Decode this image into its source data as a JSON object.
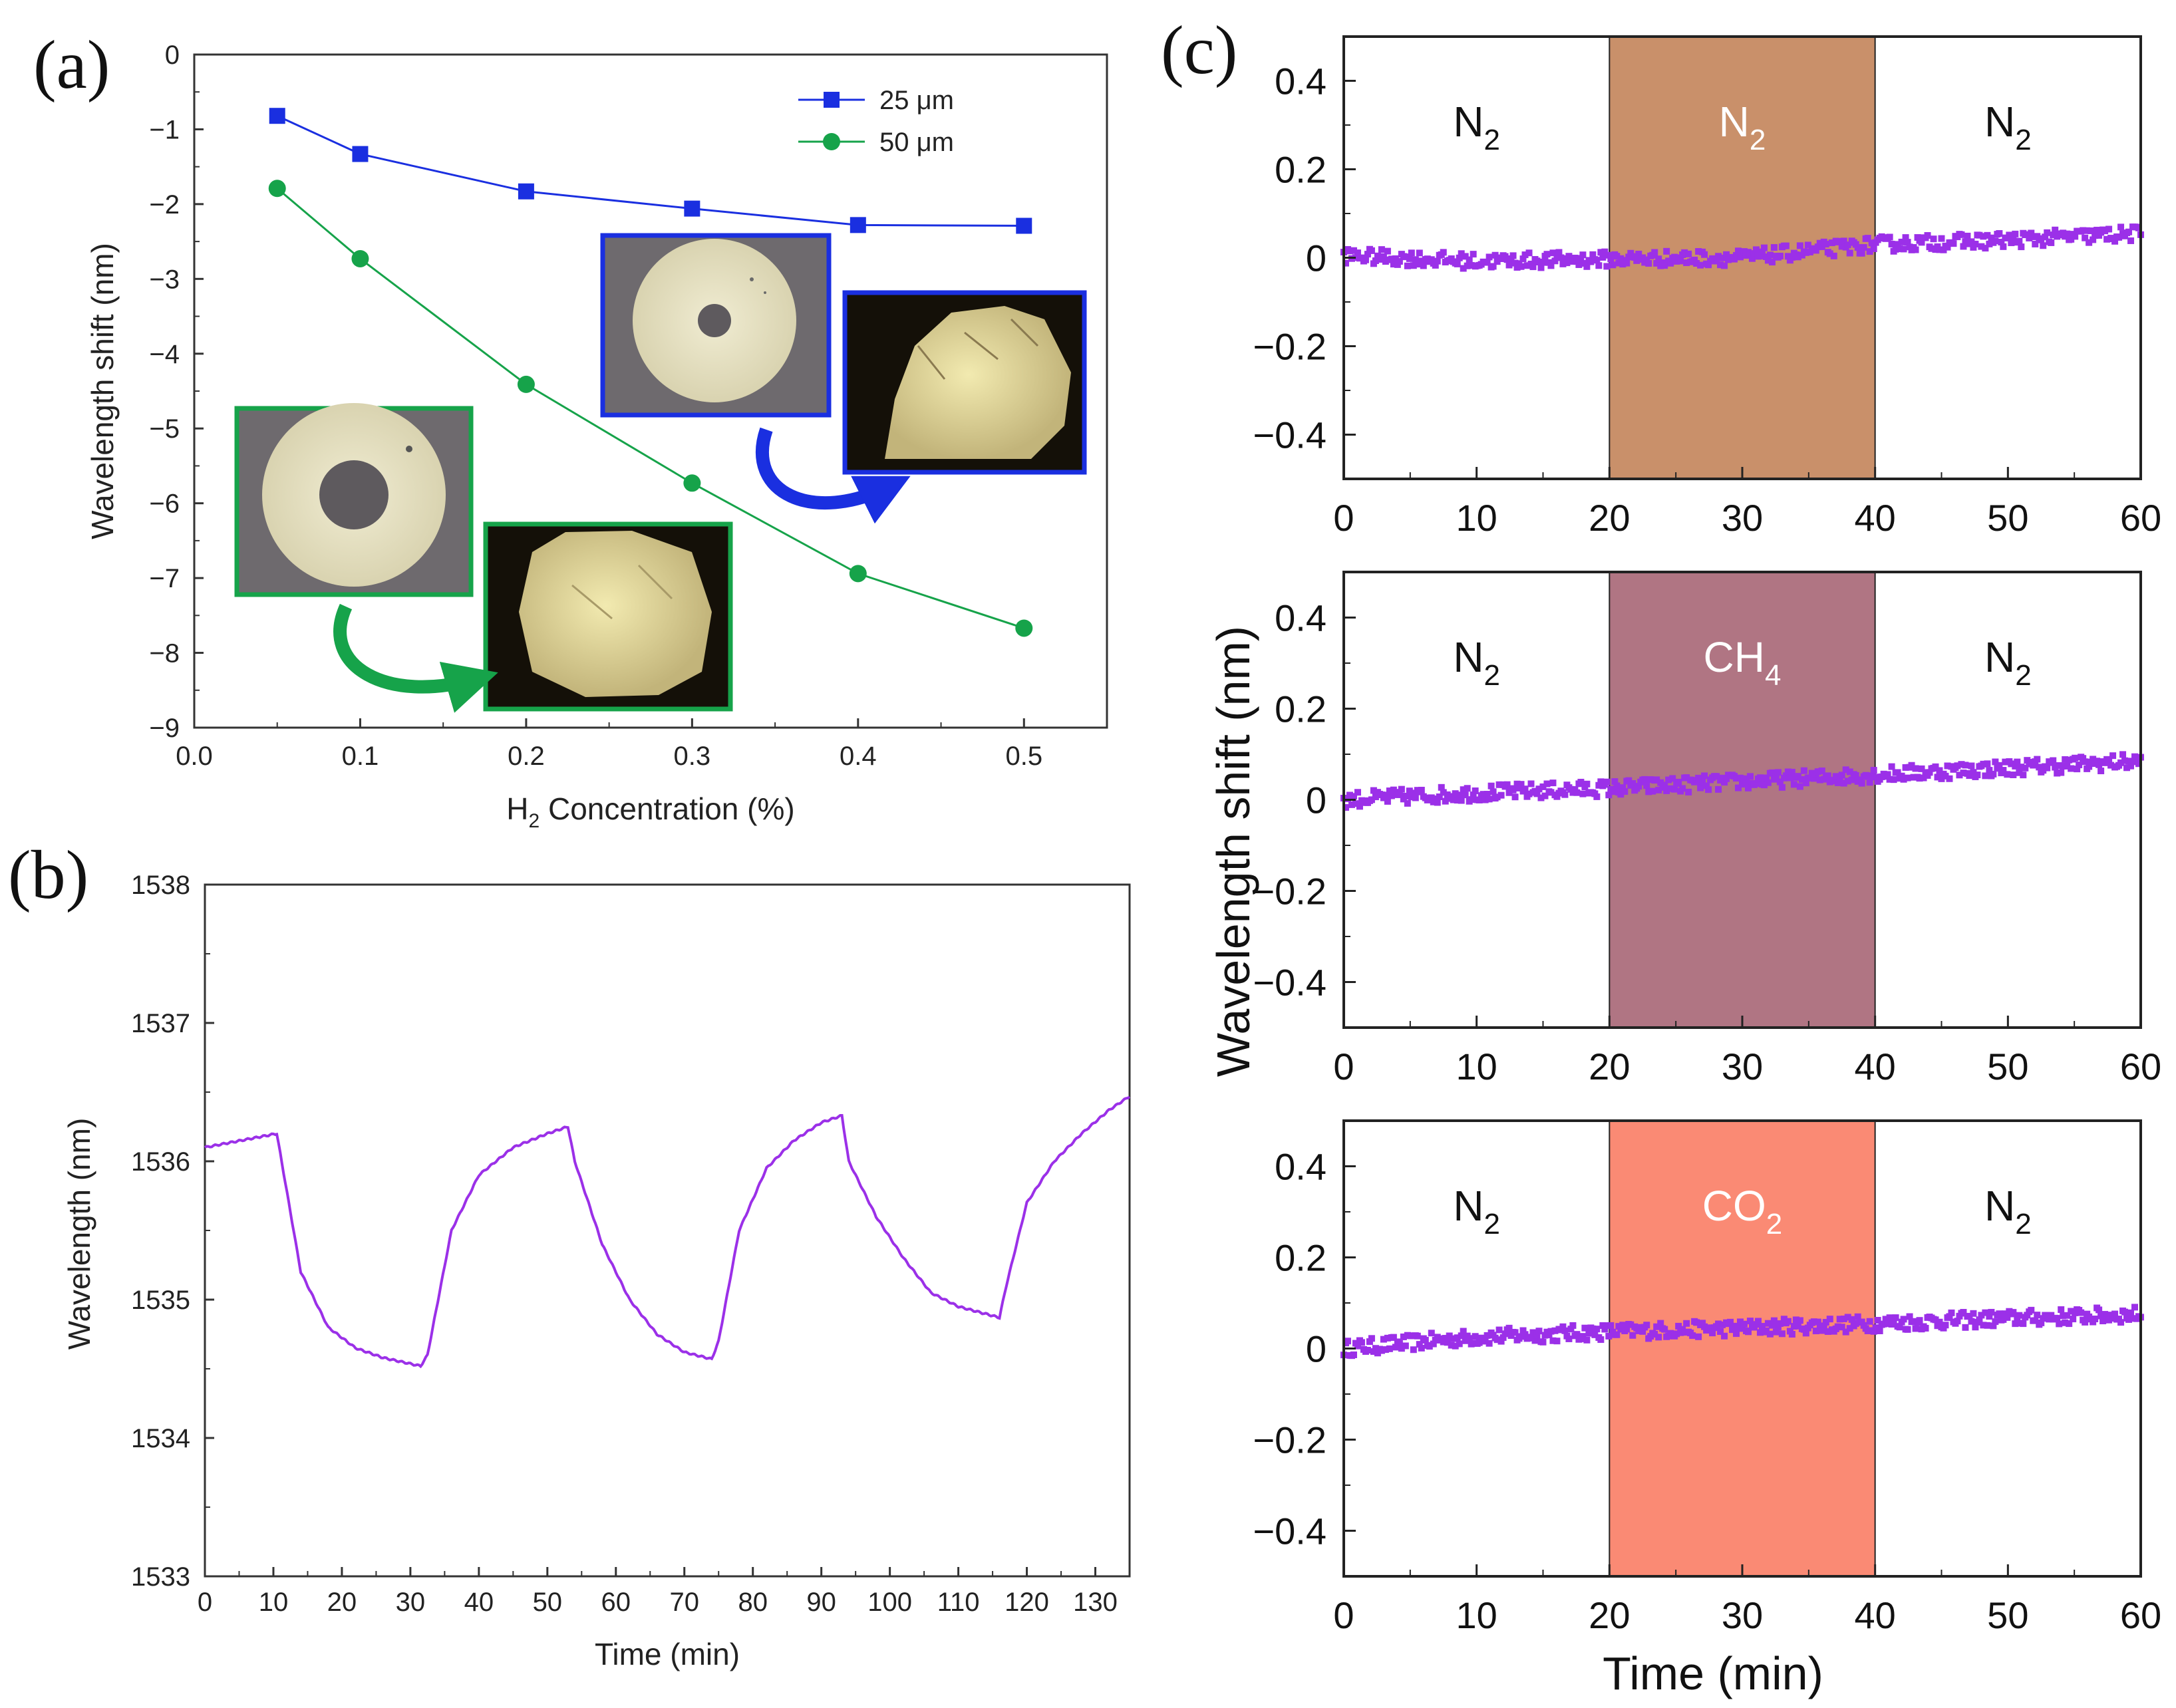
{
  "panels": {
    "a": "(a)",
    "b": "(b)",
    "c": "(c)"
  },
  "chart_data": [
    {
      "id": "a",
      "type": "line",
      "xlabel": "H2 Concentration (%)",
      "xlabel_main": "H",
      "xlabel_sub": "2",
      "xlabel_rest": " Concentration (%)",
      "ylabel": "Wavelength shift (nm)",
      "xlim": [
        0.0,
        0.55
      ],
      "ylim": [
        -9,
        0
      ],
      "xticks": [
        0.0,
        0.1,
        0.2,
        0.3,
        0.4,
        0.5
      ],
      "xtick_labels": [
        "0.0",
        "0.1",
        "0.2",
        "0.3",
        "0.4",
        "0.5"
      ],
      "yticks": [
        0,
        -1,
        -2,
        -3,
        -4,
        -5,
        -6,
        -7,
        -8,
        -9
      ],
      "ytick_labels": [
        "0",
        "−1",
        "−2",
        "−3",
        "−4",
        "−5",
        "−6",
        "−7",
        "−8",
        "−9"
      ],
      "x": [
        0.05,
        0.1,
        0.2,
        0.3,
        0.4,
        0.5
      ],
      "series": [
        {
          "name": "25 μm",
          "color": "#1a2fe0",
          "marker": "square",
          "values": [
            -0.82,
            -1.33,
            -1.83,
            -2.06,
            -2.28,
            -2.29
          ]
        },
        {
          "name": "50 μm",
          "color": "#16a34a",
          "marker": "circle",
          "values": [
            -1.79,
            -2.73,
            -4.41,
            -5.73,
            -6.94,
            -7.67
          ]
        }
      ],
      "insets": [
        {
          "name": "25um-before-micrograph",
          "border": "#1a2fe0"
        },
        {
          "name": "25um-after-micrograph",
          "border": "#1a2fe0"
        },
        {
          "name": "50um-before-micrograph",
          "border": "#16a34a"
        },
        {
          "name": "50um-after-micrograph",
          "border": "#16a34a"
        }
      ]
    },
    {
      "id": "b",
      "type": "line",
      "xlabel": "Time (min)",
      "ylabel": "Wavelength (nm)",
      "xlim": [
        0,
        135
      ],
      "ylim": [
        1533,
        1538
      ],
      "xticks": [
        0,
        10,
        20,
        30,
        40,
        50,
        60,
        70,
        80,
        90,
        100,
        110,
        120,
        130
      ],
      "xtick_labels": [
        "0",
        "10",
        "20",
        "30",
        "40",
        "50",
        "60",
        "70",
        "80",
        "90",
        "100",
        "110",
        "120",
        "130"
      ],
      "yticks": [
        1533,
        1534,
        1535,
        1536,
        1537,
        1538
      ],
      "ytick_labels": [
        "1533",
        "1534",
        "1535",
        "1536",
        "1537",
        "1538"
      ],
      "color": "#9b30e8",
      "keypoints": {
        "t": [
          0,
          10.5,
          14,
          18,
          22,
          26,
          31.5,
          32.5,
          36,
          40,
          45,
          50,
          53,
          54,
          58,
          62,
          66,
          70,
          74,
          75,
          78,
          82,
          86,
          90,
          93,
          94,
          98,
          102,
          106,
          110,
          116,
          117,
          120,
          124,
          128,
          132,
          135
        ],
        "v": [
          1536.1,
          1536.2,
          1535.2,
          1534.8,
          1534.65,
          1534.58,
          1534.52,
          1534.6,
          1535.5,
          1535.9,
          1536.1,
          1536.2,
          1536.25,
          1536.0,
          1535.4,
          1535.0,
          1534.75,
          1534.62,
          1534.57,
          1534.7,
          1535.5,
          1535.95,
          1536.15,
          1536.28,
          1536.33,
          1536.0,
          1535.6,
          1535.3,
          1535.05,
          1534.95,
          1534.87,
          1535.1,
          1535.7,
          1536.0,
          1536.2,
          1536.37,
          1536.47
        ]
      }
    },
    {
      "id": "c",
      "type": "scatter",
      "ylabel": "Wavelength shift (nm)",
      "xlabel": "Time (min)",
      "xlim": [
        0,
        60
      ],
      "ylim": [
        -0.5,
        0.5
      ],
      "xticks": [
        0,
        10,
        20,
        30,
        40,
        50,
        60
      ],
      "xtick_labels": [
        "0",
        "10",
        "20",
        "30",
        "40",
        "50",
        "60"
      ],
      "yticks": [
        0.4,
        0.2,
        0,
        -0.2,
        -0.4
      ],
      "ytick_labels": [
        "0.4",
        "0.2",
        "0",
        "−0.2",
        "−0.4"
      ],
      "color": "#9b30e8",
      "highlight_range": [
        20,
        40
      ],
      "subplots": [
        {
          "gas_main": "CO",
          "gas_sub": "2",
          "left_main": "N",
          "left_sub": "2",
          "right_main": "N",
          "right_sub": "2",
          "fill": "#fa8a74",
          "trend": {
            "x": [
              0,
              10,
              20,
              30,
              40,
              50,
              60
            ],
            "y": [
              0.0,
              0.025,
              0.037,
              0.045,
              0.055,
              0.066,
              0.075
            ]
          }
        },
        {
          "gas_main": "CH",
          "gas_sub": "4",
          "left_main": "N",
          "left_sub": "2",
          "right_main": "N",
          "right_sub": "2",
          "fill": "#b07583",
          "trend": {
            "x": [
              0,
              10,
              20,
              30,
              40,
              50,
              60
            ],
            "y": [
              0.0,
              0.015,
              0.025,
              0.04,
              0.055,
              0.07,
              0.085
            ]
          }
        },
        {
          "gas_main": "N",
          "gas_sub": "2",
          "left_main": "N",
          "left_sub": "2",
          "right_main": "N",
          "right_sub": "2",
          "fill": "#c9906a",
          "trend": {
            "x": [
              0,
              10,
              20,
              30,
              40,
              50,
              60
            ],
            "y": [
              0.005,
              -0.008,
              -0.003,
              0.0,
              0.03,
              0.04,
              0.055
            ]
          }
        }
      ]
    }
  ]
}
